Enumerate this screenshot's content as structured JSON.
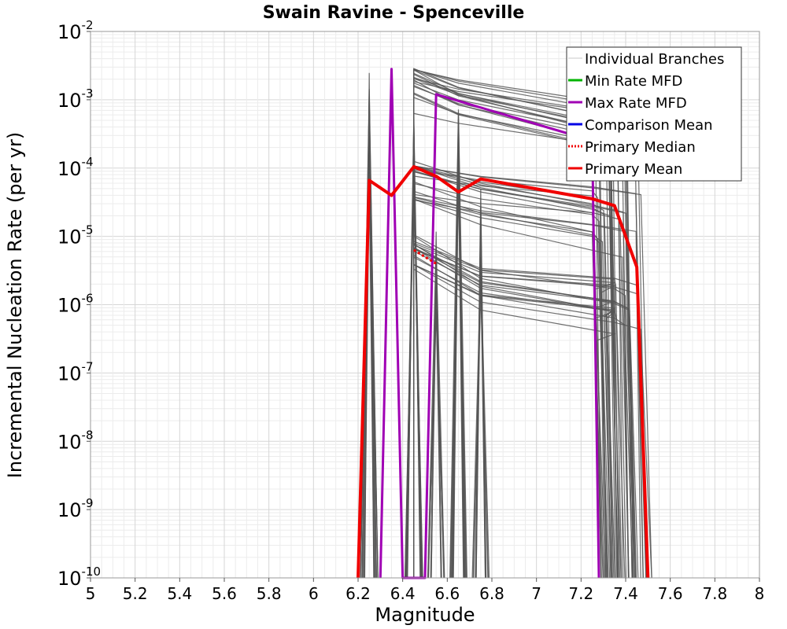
{
  "chart_data": {
    "type": "line",
    "title": "Swain Ravine - Spenceville",
    "xlabel": "Magnitude",
    "ylabel": "Incremental Nucleation Rate (per yr)",
    "xlim": [
      5,
      8
    ],
    "ylim_log10": [
      -10,
      -2
    ],
    "y_scale": "log",
    "x_ticks": [
      "5",
      "5.2",
      "5.4",
      "5.6",
      "5.8",
      "6",
      "6.2",
      "6.4",
      "6.6",
      "6.8",
      "7",
      "7.2",
      "7.4",
      "7.6",
      "7.8",
      "8"
    ],
    "y_ticks": [
      {
        "base": "10",
        "exp": "-2"
      },
      {
        "base": "10",
        "exp": "-3"
      },
      {
        "base": "10",
        "exp": "-4"
      },
      {
        "base": "10",
        "exp": "-5"
      },
      {
        "base": "10",
        "exp": "-6"
      },
      {
        "base": "10",
        "exp": "-7"
      },
      {
        "base": "10",
        "exp": "-8"
      },
      {
        "base": "10",
        "exp": "-9"
      },
      {
        "base": "10",
        "exp": "-10"
      }
    ],
    "grid": true,
    "legend_position": "top-right",
    "legend": [
      {
        "label": "Individual Branches",
        "color": "#c8c8c8",
        "style": "solid"
      },
      {
        "label": "Min Rate MFD",
        "color": "#00b400",
        "style": "solid"
      },
      {
        "label": "Max Rate MFD",
        "color": "#a000b4",
        "style": "solid"
      },
      {
        "label": "Comparison Mean",
        "color": "#0000e6",
        "style": "solid"
      },
      {
        "label": "Primary Median",
        "color": "#f00000",
        "style": "dotted"
      },
      {
        "label": "Primary Mean",
        "color": "#f00000",
        "style": "solid"
      }
    ],
    "branch_color": "#555555",
    "series": [
      {
        "name": "Max Rate MFD",
        "color": "#a000b4",
        "points": [
          [
            6.3,
            -10
          ],
          [
            6.35,
            -2.55
          ],
          [
            6.4,
            -10
          ],
          [
            6.5,
            -10
          ],
          [
            6.55,
            -2.92
          ],
          [
            7.25,
            -3.6
          ],
          [
            7.28,
            -10
          ]
        ]
      },
      {
        "name": "Primary Mean",
        "color": "#f00000",
        "points": [
          [
            6.2,
            -10
          ],
          [
            6.25,
            -4.18
          ],
          [
            6.35,
            -4.4
          ],
          [
            6.45,
            -3.98
          ],
          [
            6.55,
            -4.12
          ],
          [
            6.65,
            -4.35
          ],
          [
            6.75,
            -4.16
          ],
          [
            7.25,
            -4.45
          ],
          [
            7.35,
            -4.55
          ],
          [
            7.45,
            -5.45
          ],
          [
            7.5,
            -10
          ]
        ]
      },
      {
        "name": "Primary Median",
        "color": "#f00000",
        "dashed": true,
        "points": [
          [
            6.45,
            -5.2
          ],
          [
            6.55,
            -5.4
          ]
        ]
      }
    ],
    "branch_groups": [
      {
        "count": 20,
        "points": [
          [
            6.45,
            -2.85
          ],
          [
            6.65,
            -3.1
          ],
          [
            7.25,
            -3.5
          ]
        ],
        "spread": 0.7
      },
      {
        "count": 20,
        "points": [
          [
            6.45,
            -4.2
          ],
          [
            6.75,
            -4.45
          ],
          [
            7.25,
            -4.7
          ]
        ],
        "spread": 0.6
      },
      {
        "count": 18,
        "points": [
          [
            6.45,
            -5.25
          ],
          [
            6.75,
            -5.75
          ],
          [
            7.35,
            -6.0
          ]
        ],
        "spread": 0.55
      }
    ],
    "spikes": [
      {
        "x": 6.25,
        "peak": -2.6,
        "count": 12
      },
      {
        "x": 6.45,
        "peak": -2.62,
        "count": 12
      },
      {
        "x": 6.55,
        "peak": -4.6,
        "count": 8
      },
      {
        "x": 6.65,
        "peak": -2.65,
        "count": 10
      },
      {
        "x": 6.75,
        "peak": -4.3,
        "count": 8
      }
    ]
  }
}
